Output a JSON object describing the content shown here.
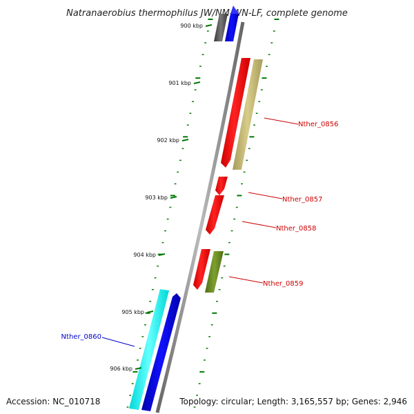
{
  "title": "Natranaerobius thermophilus JW/NM-WN-LF, complete genome",
  "accession": "Accession: NC_010718",
  "topology": "Topology: circular; Length: 3,165,557 bp; Genes: 2,946",
  "ticks": [
    "900 kbp",
    "901 kbp",
    "902 kbp",
    "903 kbp",
    "904 kbp",
    "905 kbp",
    "906 kbp"
  ],
  "genes": [
    {
      "name": "Nther_0856",
      "color": "#cc0000",
      "strand": "+"
    },
    {
      "name": "Nther_0857",
      "color": "#cc0000",
      "strand": "+"
    },
    {
      "name": "Nther_0858",
      "color": "#cc0000",
      "strand": "+"
    },
    {
      "name": "Nther_0859",
      "color": "#cc0000",
      "strand": "+"
    },
    {
      "name": "Nther_0860",
      "color": "#0000cc",
      "strand": "-"
    }
  ],
  "colors": {
    "backbone": "#888888",
    "tick": "#007700",
    "forward_cds": "#ff0000",
    "reverse_cds": "#0000ff",
    "rna_khaki": "#c8bc7a",
    "olive": "#6b8e23",
    "cyan": "#00ffff",
    "dark_gray": "#555555"
  }
}
